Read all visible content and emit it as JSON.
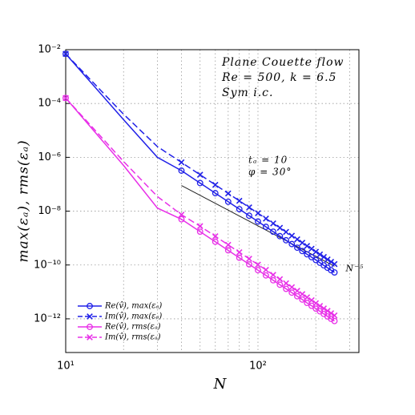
{
  "chart_data": {
    "type": "line",
    "annotations": [
      "Plane Couette flow",
      "Re = 500,  k = 6.5",
      "Sym i.c.",
      "tₐ = 10",
      "φ = 30°"
    ],
    "x_label": "N",
    "y_label": "max(εₐ), rms(εₐ)",
    "x": [
      10,
      20,
      30,
      40,
      50,
      60,
      70,
      80,
      90,
      100,
      110,
      120,
      130,
      140,
      150,
      160,
      170,
      180,
      190,
      200,
      210,
      220,
      230,
      240,
      250
    ],
    "series": [
      {
        "name": "Re(v̂),  max(εₐ)",
        "color": "#2020e8",
        "marker": "o",
        "dashed": false,
        "values": [
          0.007,
          2.5e-05,
          1e-06,
          3.2e-07,
          1.11e-07,
          4.66e-08,
          2.24e-08,
          1.19e-08,
          6.8e-09,
          4.12e-09,
          2.62e-09,
          1.73e-09,
          1.18e-09,
          8.3e-10,
          6e-10,
          4.4e-10,
          3.3e-10,
          2.5e-10,
          1.95e-10,
          1.53e-10,
          1.21e-10,
          9.7e-11,
          7.9e-11,
          6.4e-11,
          5.3e-11
        ]
      },
      {
        "name": "Im(v̂),  max(εₐ)",
        "color": "#2020e8",
        "marker": "x",
        "dashed": true,
        "values": [
          0.007,
          4e-05,
          2.5e-06,
          6.5e-07,
          2.25e-07,
          9.5e-08,
          4.56e-08,
          2.42e-08,
          1.38e-08,
          8.4e-09,
          5.3e-09,
          3.5e-09,
          2.4e-09,
          1.69e-09,
          1.22e-09,
          9e-10,
          6.7e-10,
          5.1e-10,
          4e-10,
          3.1e-10,
          2.46e-10,
          1.98e-10,
          1.6e-10,
          1.31e-10,
          1.08e-10
        ]
      },
      {
        "name": "Re(v̂),  rms(εₐ)",
        "color": "#e830e8",
        "marker": "o",
        "dashed": false,
        "values": [
          0.00016,
          5e-07,
          1.3e-08,
          5e-09,
          1.73e-09,
          7.3e-10,
          3.5e-10,
          1.86e-10,
          1.06e-10,
          6.4e-11,
          4.1e-11,
          2.7e-11,
          1.85e-11,
          1.3e-11,
          9.4e-12,
          6.9e-12,
          5.2e-12,
          3.9e-12,
          3.05e-12,
          2.4e-12,
          1.9e-12,
          1.52e-12,
          1.23e-12,
          1e-12,
          8.3e-13
        ]
      },
      {
        "name": "Im(v̂),  rms(εₐ)",
        "color": "#e830e8",
        "marker": "x",
        "dashed": true,
        "values": [
          0.00016,
          7e-07,
          3.5e-08,
          7.4e-09,
          2.77e-09,
          1.17e-09,
          5.6e-10,
          2.97e-10,
          1.7e-10,
          1.03e-10,
          6.6e-11,
          4.3e-11,
          2.96e-11,
          2.08e-11,
          1.5e-11,
          1.1e-11,
          8.3e-12,
          6.3e-12,
          4.9e-12,
          3.8e-12,
          3e-12,
          2.43e-12,
          1.97e-12,
          1.61e-12,
          1.33e-12
        ]
      }
    ],
    "reference_line": {
      "label": "N⁻⁵",
      "color": "#222222",
      "x": [
        40,
        250
      ],
      "values": [
        9e-08,
        9e-11
      ]
    },
    "xscale": "log",
    "yscale": "log",
    "xlim": [
      10,
      335
    ],
    "ylim": [
      5.6e-14,
      0.01
    ],
    "xticks": [
      {
        "value": 10,
        "label": "10¹"
      },
      {
        "value": 100,
        "label": "10²"
      }
    ],
    "xminorticks": [
      20,
      30,
      40,
      50,
      60,
      70,
      80,
      90,
      200,
      300
    ],
    "yticks": [
      {
        "value": 1e-12,
        "label": "10⁻¹²"
      },
      {
        "value": 1e-10,
        "label": "10⁻¹⁰"
      },
      {
        "value": 1e-08,
        "label": "10⁻⁸"
      },
      {
        "value": 1e-06,
        "label": "10⁻⁶"
      },
      {
        "value": 0.0001,
        "label": "10⁻⁴"
      },
      {
        "value": 0.01,
        "label": "10⁻²"
      }
    ],
    "grid": true,
    "legend": "lower left"
  }
}
